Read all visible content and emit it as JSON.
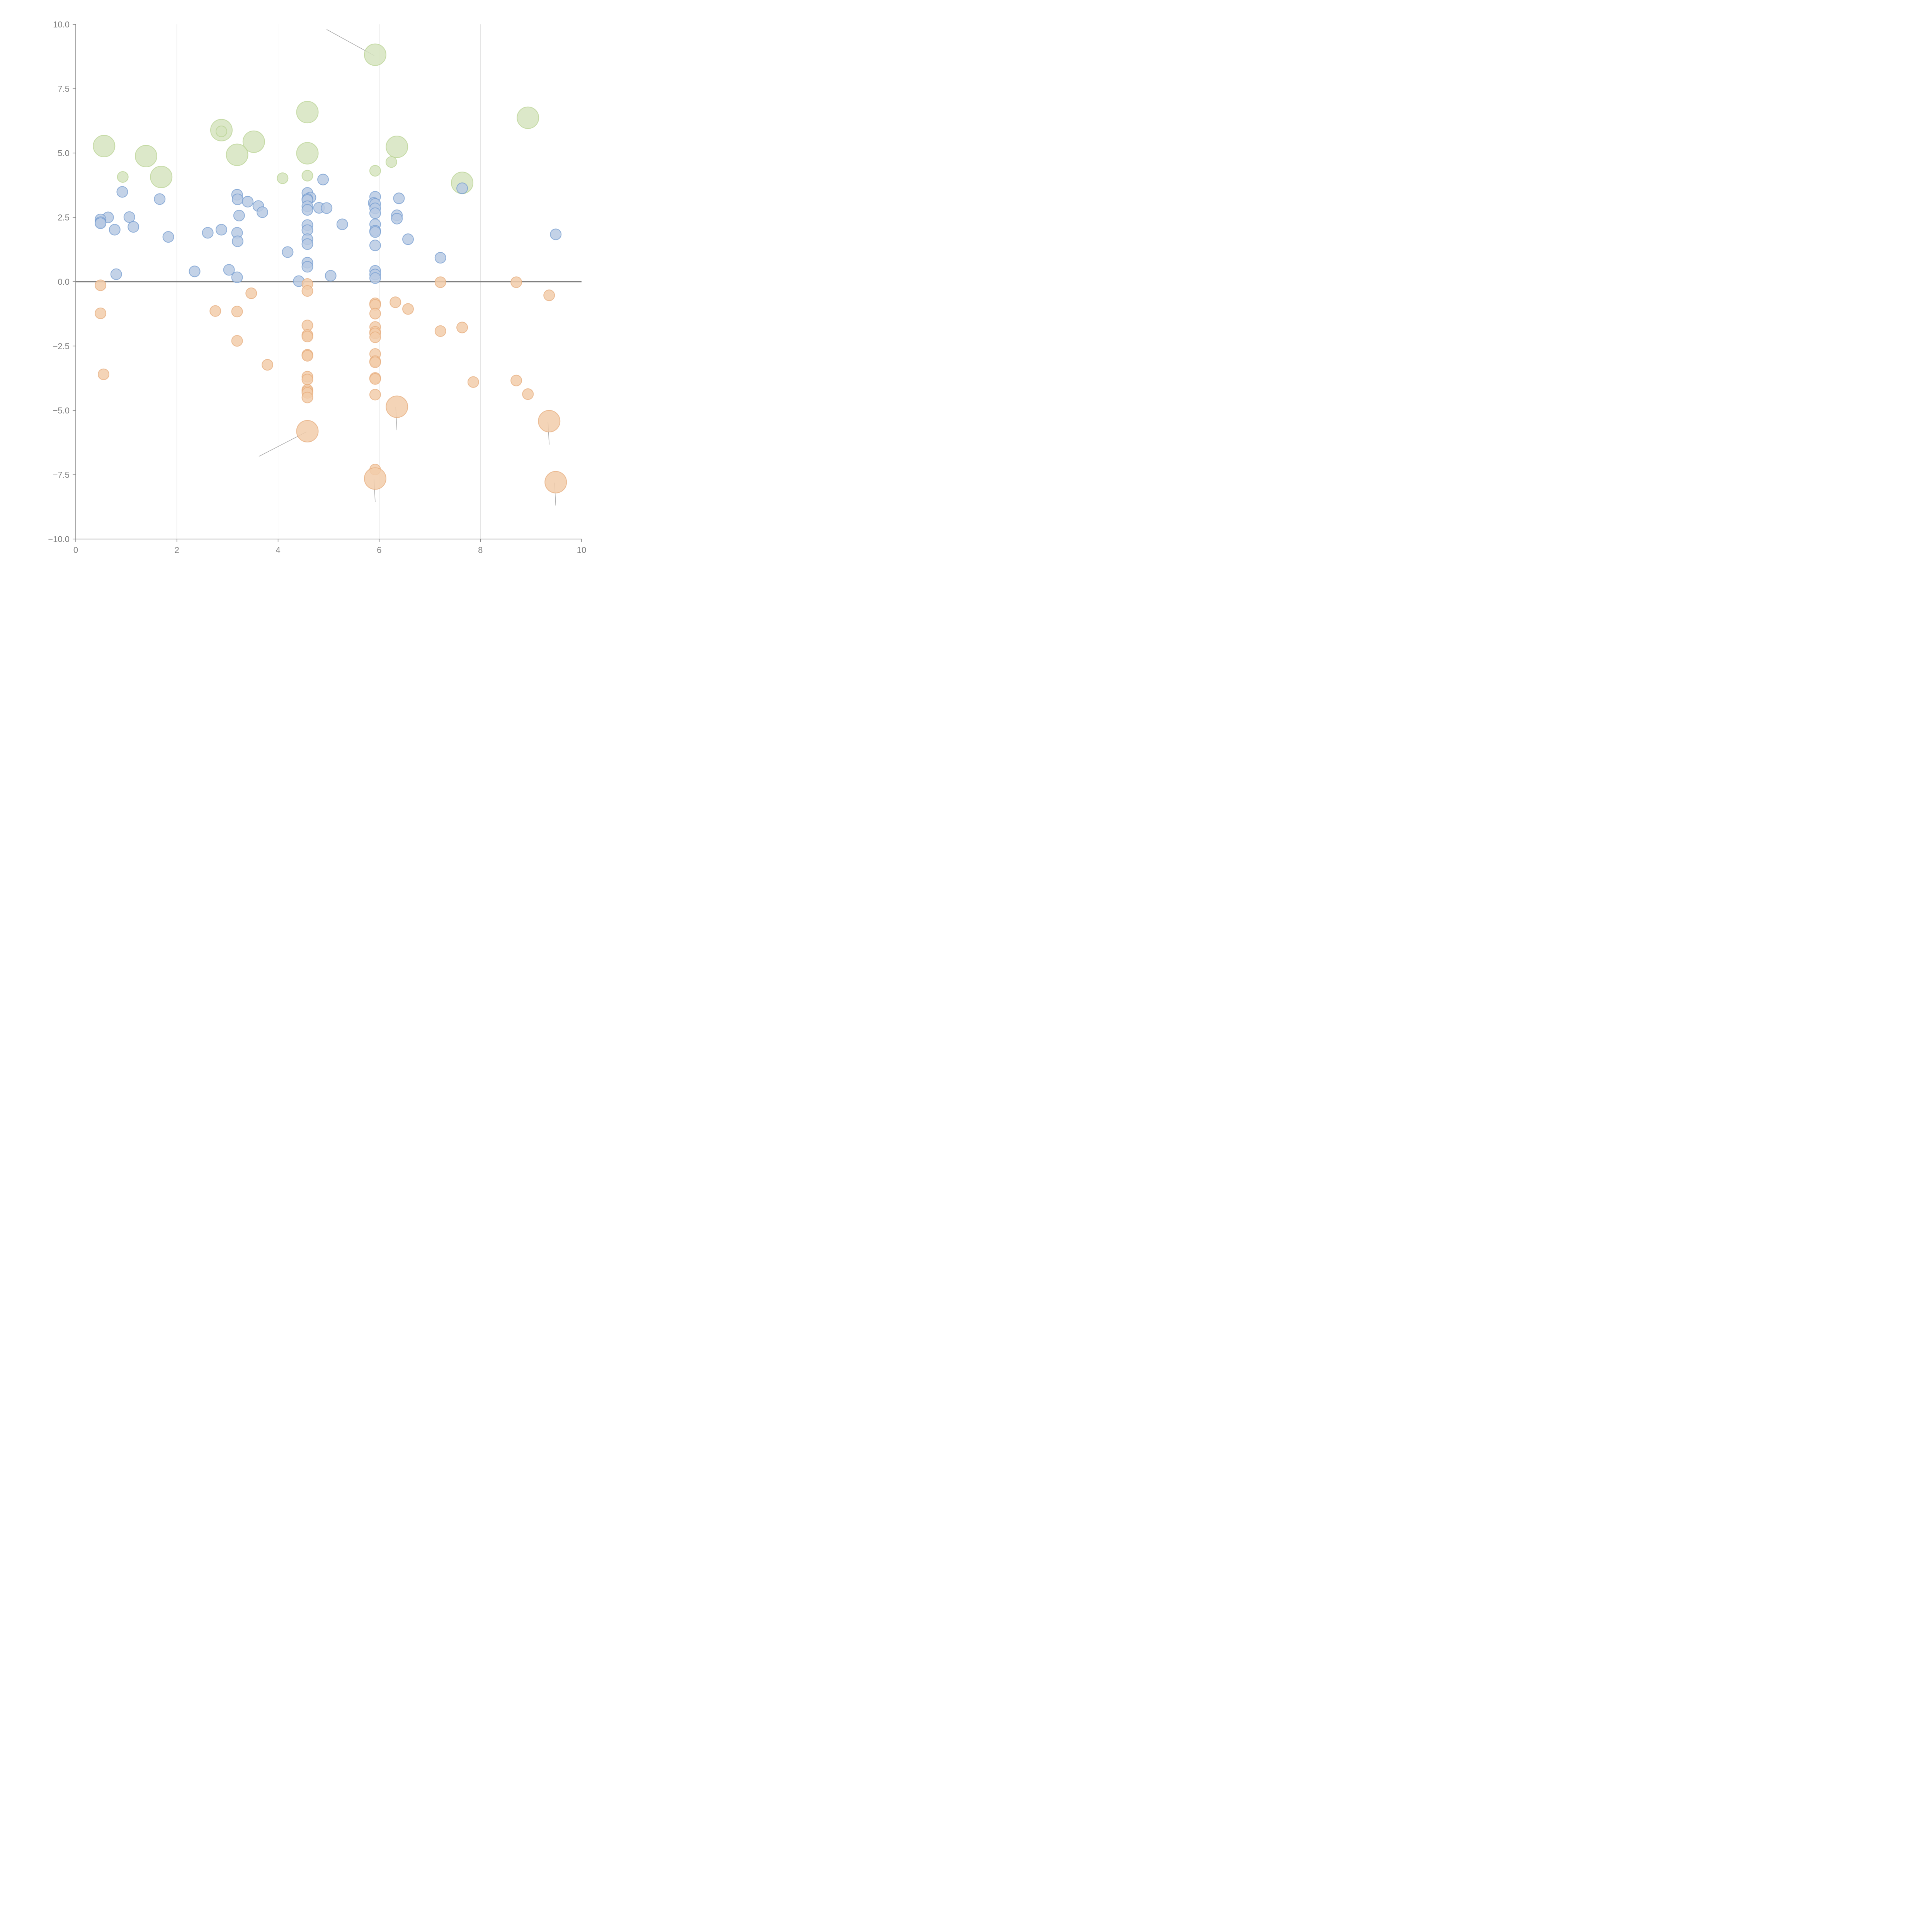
{
  "chart_data": {
    "type": "scatter",
    "subtype": "bubble",
    "title": "",
    "xlabel": "",
    "ylabel": "",
    "xlim": [
      0,
      10
    ],
    "ylim": [
      -10,
      10
    ],
    "x_ticks": [
      "0",
      "2",
      "4",
      "6",
      "8",
      "10"
    ],
    "x_tick_values": [
      0,
      2,
      4,
      6,
      8,
      10
    ],
    "y_ticks": [
      "10.0",
      "7.5",
      "5.0",
      "2.5",
      "0.0",
      "−2.5",
      "−5.0",
      "−7.5",
      "−10.0"
    ],
    "y_tick_values": [
      10,
      7.5,
      5,
      2.5,
      0,
      -2.5,
      -5,
      -7.5,
      -10
    ],
    "grid": "vertical",
    "reference_line_y": 0,
    "legend": "none",
    "series": [
      {
        "name": "green",
        "color": "#b7d18f",
        "fill": "#d6e4bf",
        "points": [
          {
            "x": 5.92,
            "y": 8.82,
            "size": 2,
            "leader": true
          },
          {
            "x": 4.58,
            "y": 6.59,
            "size": 2
          },
          {
            "x": 8.94,
            "y": 6.37,
            "size": 2
          },
          {
            "x": 2.88,
            "y": 5.89,
            "size": 2
          },
          {
            "x": 2.88,
            "y": 5.84,
            "size": 1
          },
          {
            "x": 3.52,
            "y": 5.44,
            "size": 2
          },
          {
            "x": 0.56,
            "y": 5.27,
            "size": 2
          },
          {
            "x": 6.35,
            "y": 5.24,
            "size": 2
          },
          {
            "x": 4.58,
            "y": 4.99,
            "size": 2
          },
          {
            "x": 3.19,
            "y": 4.93,
            "size": 2
          },
          {
            "x": 1.39,
            "y": 4.88,
            "size": 2
          },
          {
            "x": 6.24,
            "y": 4.65,
            "size": 1
          },
          {
            "x": 5.92,
            "y": 4.31,
            "size": 1
          },
          {
            "x": 4.58,
            "y": 4.12,
            "size": 1
          },
          {
            "x": 0.93,
            "y": 4.07,
            "size": 1
          },
          {
            "x": 1.69,
            "y": 4.07,
            "size": 2
          },
          {
            "x": 4.09,
            "y": 4.02,
            "size": 1
          },
          {
            "x": 7.64,
            "y": 3.84,
            "size": 2
          }
        ]
      },
      {
        "name": "blue",
        "color": "#6f99cf",
        "fill": "#b8cae3",
        "points": [
          {
            "x": 4.89,
            "y": 3.97,
            "size": 1
          },
          {
            "x": 7.64,
            "y": 3.63,
            "size": 1
          },
          {
            "x": 0.92,
            "y": 3.49,
            "size": 1
          },
          {
            "x": 4.58,
            "y": 3.45,
            "size": 1
          },
          {
            "x": 3.19,
            "y": 3.38,
            "size": 1
          },
          {
            "x": 5.92,
            "y": 3.3,
            "size": 1
          },
          {
            "x": 4.64,
            "y": 3.27,
            "size": 1
          },
          {
            "x": 6.39,
            "y": 3.24,
            "size": 1
          },
          {
            "x": 1.66,
            "y": 3.21,
            "size": 1
          },
          {
            "x": 3.2,
            "y": 3.2,
            "size": 1
          },
          {
            "x": 4.58,
            "y": 3.21,
            "size": 1
          },
          {
            "x": 4.58,
            "y": 3.17,
            "size": 1
          },
          {
            "x": 3.4,
            "y": 3.11,
            "size": 1
          },
          {
            "x": 5.89,
            "y": 3.06,
            "size": 1
          },
          {
            "x": 5.92,
            "y": 3.02,
            "size": 1
          },
          {
            "x": 3.61,
            "y": 2.94,
            "size": 1
          },
          {
            "x": 4.58,
            "y": 2.93,
            "size": 1
          },
          {
            "x": 4.81,
            "y": 2.87,
            "size": 1
          },
          {
            "x": 4.96,
            "y": 2.86,
            "size": 1
          },
          {
            "x": 5.92,
            "y": 2.85,
            "size": 1
          },
          {
            "x": 4.58,
            "y": 2.79,
            "size": 1
          },
          {
            "x": 3.69,
            "y": 2.7,
            "size": 1
          },
          {
            "x": 5.92,
            "y": 2.66,
            "size": 1
          },
          {
            "x": 6.35,
            "y": 2.58,
            "size": 1
          },
          {
            "x": 3.23,
            "y": 2.57,
            "size": 1
          },
          {
            "x": 0.64,
            "y": 2.5,
            "size": 1
          },
          {
            "x": 1.06,
            "y": 2.51,
            "size": 1
          },
          {
            "x": 6.35,
            "y": 2.45,
            "size": 1
          },
          {
            "x": 0.49,
            "y": 2.42,
            "size": 1
          },
          {
            "x": 0.49,
            "y": 2.31,
            "size": 1
          },
          {
            "x": 0.49,
            "y": 2.27,
            "size": 1
          },
          {
            "x": 5.27,
            "y": 2.23,
            "size": 1
          },
          {
            "x": 5.92,
            "y": 2.23,
            "size": 1
          },
          {
            "x": 4.58,
            "y": 2.2,
            "size": 1
          },
          {
            "x": 1.14,
            "y": 2.13,
            "size": 1
          },
          {
            "x": 0.77,
            "y": 2.02,
            "size": 1
          },
          {
            "x": 2.88,
            "y": 2.02,
            "size": 1
          },
          {
            "x": 4.58,
            "y": 2.0,
            "size": 1
          },
          {
            "x": 5.92,
            "y": 1.98,
            "size": 1
          },
          {
            "x": 5.92,
            "y": 1.93,
            "size": 1
          },
          {
            "x": 2.61,
            "y": 1.9,
            "size": 1
          },
          {
            "x": 3.19,
            "y": 1.9,
            "size": 1
          },
          {
            "x": 9.49,
            "y": 1.84,
            "size": 1
          },
          {
            "x": 1.83,
            "y": 1.74,
            "size": 1
          },
          {
            "x": 6.57,
            "y": 1.65,
            "size": 1
          },
          {
            "x": 4.58,
            "y": 1.65,
            "size": 1
          },
          {
            "x": 3.2,
            "y": 1.57,
            "size": 1
          },
          {
            "x": 4.58,
            "y": 1.46,
            "size": 1
          },
          {
            "x": 5.92,
            "y": 1.41,
            "size": 1
          },
          {
            "x": 4.19,
            "y": 1.15,
            "size": 1
          },
          {
            "x": 7.21,
            "y": 0.93,
            "size": 1
          },
          {
            "x": 4.58,
            "y": 0.74,
            "size": 1
          },
          {
            "x": 4.58,
            "y": 0.58,
            "size": 1
          },
          {
            "x": 3.03,
            "y": 0.46,
            "size": 1
          },
          {
            "x": 5.92,
            "y": 0.42,
            "size": 1
          },
          {
            "x": 2.35,
            "y": 0.4,
            "size": 1
          },
          {
            "x": 5.92,
            "y": 0.28,
            "size": 1
          },
          {
            "x": 0.8,
            "y": 0.29,
            "size": 1
          },
          {
            "x": 5.04,
            "y": 0.23,
            "size": 1
          },
          {
            "x": 3.19,
            "y": 0.17,
            "size": 1
          },
          {
            "x": 5.92,
            "y": 0.14,
            "size": 1
          },
          {
            "x": 4.41,
            "y": 0.02,
            "size": 1
          }
        ]
      },
      {
        "name": "orange",
        "color": "#e6a978",
        "fill": "#f2ccaa",
        "points": [
          {
            "x": 7.21,
            "y": -0.02,
            "size": 1
          },
          {
            "x": 8.71,
            "y": -0.02,
            "size": 1
          },
          {
            "x": 4.58,
            "y": -0.09,
            "size": 1
          },
          {
            "x": 0.49,
            "y": -0.14,
            "size": 1
          },
          {
            "x": 4.58,
            "y": -0.36,
            "size": 1
          },
          {
            "x": 3.47,
            "y": -0.45,
            "size": 1
          },
          {
            "x": 9.36,
            "y": -0.53,
            "size": 1
          },
          {
            "x": 6.32,
            "y": -0.8,
            "size": 1
          },
          {
            "x": 5.92,
            "y": -0.84,
            "size": 1
          },
          {
            "x": 5.92,
            "y": -0.9,
            "size": 1
          },
          {
            "x": 6.57,
            "y": -1.06,
            "size": 1
          },
          {
            "x": 2.76,
            "y": -1.14,
            "size": 1
          },
          {
            "x": 3.19,
            "y": -1.16,
            "size": 1
          },
          {
            "x": 0.49,
            "y": -1.23,
            "size": 1
          },
          {
            "x": 5.92,
            "y": -1.24,
            "size": 1
          },
          {
            "x": 4.58,
            "y": -1.7,
            "size": 1
          },
          {
            "x": 7.64,
            "y": -1.78,
            "size": 1
          },
          {
            "x": 5.92,
            "y": -1.76,
            "size": 1
          },
          {
            "x": 7.21,
            "y": -1.92,
            "size": 1
          },
          {
            "x": 5.92,
            "y": -1.95,
            "size": 1
          },
          {
            "x": 5.92,
            "y": -2.01,
            "size": 1
          },
          {
            "x": 4.58,
            "y": -2.07,
            "size": 1
          },
          {
            "x": 4.58,
            "y": -2.13,
            "size": 1
          },
          {
            "x": 5.92,
            "y": -2.16,
            "size": 1
          },
          {
            "x": 3.19,
            "y": -2.3,
            "size": 1
          },
          {
            "x": 5.92,
            "y": -2.81,
            "size": 1
          },
          {
            "x": 4.58,
            "y": -2.84,
            "size": 1
          },
          {
            "x": 4.58,
            "y": -2.88,
            "size": 1
          },
          {
            "x": 5.92,
            "y": -3.09,
            "size": 1
          },
          {
            "x": 5.92,
            "y": -3.13,
            "size": 1
          },
          {
            "x": 3.79,
            "y": -3.23,
            "size": 1
          },
          {
            "x": 0.55,
            "y": -3.6,
            "size": 1
          },
          {
            "x": 4.58,
            "y": -3.69,
            "size": 1
          },
          {
            "x": 5.92,
            "y": -3.74,
            "size": 1
          },
          {
            "x": 5.92,
            "y": -3.78,
            "size": 1
          },
          {
            "x": 4.58,
            "y": -3.8,
            "size": 1
          },
          {
            "x": 8.71,
            "y": -3.84,
            "size": 1
          },
          {
            "x": 7.86,
            "y": -3.9,
            "size": 1
          },
          {
            "x": 4.58,
            "y": -4.2,
            "size": 1
          },
          {
            "x": 4.58,
            "y": -4.26,
            "size": 1
          },
          {
            "x": 4.58,
            "y": -4.32,
            "size": 1
          },
          {
            "x": 8.94,
            "y": -4.37,
            "size": 1
          },
          {
            "x": 5.92,
            "y": -4.39,
            "size": 1
          },
          {
            "x": 4.58,
            "y": -4.5,
            "size": 1
          },
          {
            "x": 6.35,
            "y": -4.86,
            "size": 2,
            "leader": true
          },
          {
            "x": 9.36,
            "y": -5.42,
            "size": 2,
            "leader": true
          },
          {
            "x": 4.58,
            "y": -5.81,
            "size": 2,
            "leader": true
          },
          {
            "x": 5.92,
            "y": -7.3,
            "size": 1
          },
          {
            "x": 5.92,
            "y": -7.65,
            "size": 2,
            "leader": true
          },
          {
            "x": 9.49,
            "y": -7.79,
            "size": 2,
            "leader": true
          }
        ]
      }
    ]
  }
}
